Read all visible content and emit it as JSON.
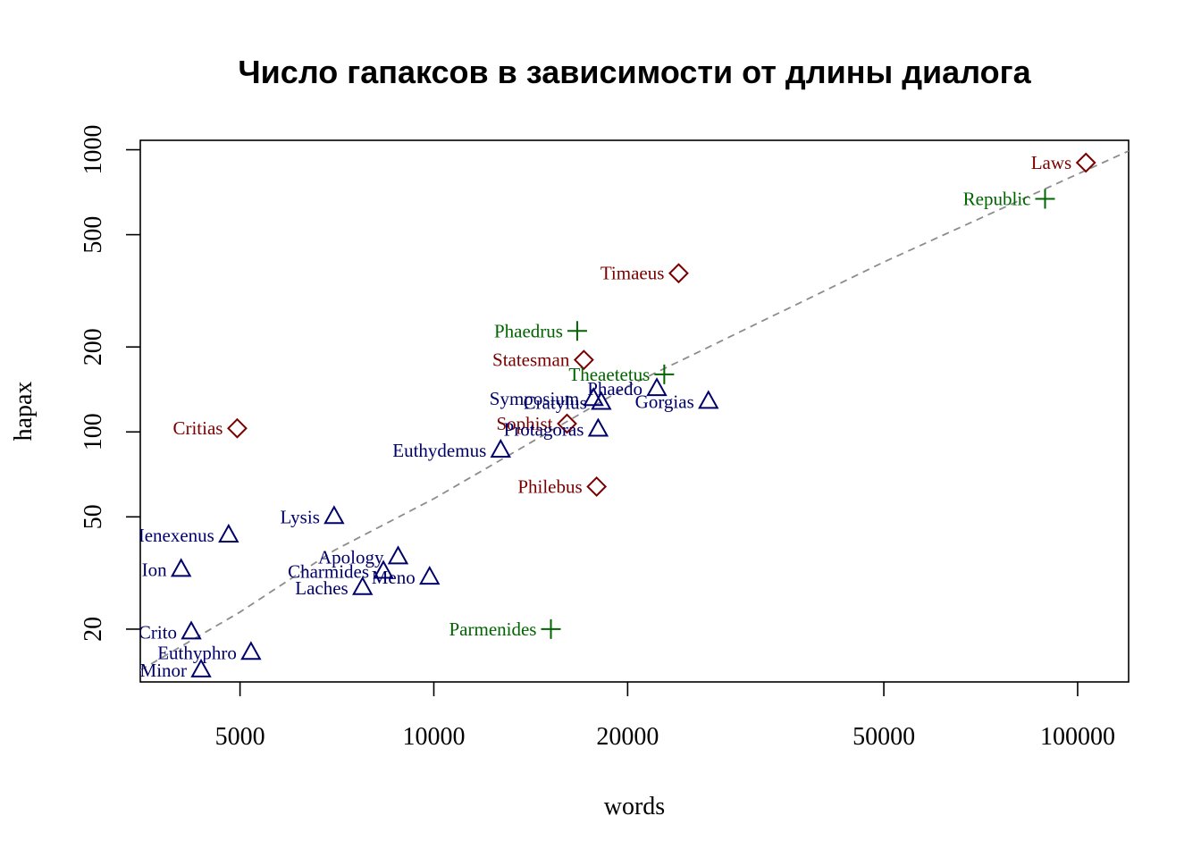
{
  "chart_data": {
    "type": "scatter",
    "title": "Число гапаксов в зависимости от длины диалога",
    "xlabel": "words",
    "ylabel": "hapax",
    "xscale": "log",
    "yscale": "log",
    "xlim": [
      3500,
      120000
    ],
    "ylim": [
      13,
      1080
    ],
    "xticks": [
      {
        "value": 5000,
        "label": "5000"
      },
      {
        "value": 10000,
        "label": "10000"
      },
      {
        "value": 20000,
        "label": "20000"
      },
      {
        "value": 50000,
        "label": "50000"
      },
      {
        "value": 100000,
        "label": "100000"
      }
    ],
    "yticks": [
      {
        "value": 20,
        "label": "20"
      },
      {
        "value": 50,
        "label": "50"
      },
      {
        "value": 100,
        "label": "100"
      },
      {
        "value": 200,
        "label": "200"
      },
      {
        "value": 500,
        "label": "500"
      },
      {
        "value": 1000,
        "label": "1000"
      }
    ],
    "grid": false,
    "legend": "none",
    "groups": {
      "triangle": {
        "marker": "triangle",
        "color": "#00006b"
      },
      "diamond": {
        "marker": "diamond",
        "color": "#7a0000"
      },
      "plus": {
        "marker": "plus",
        "color": "#006400"
      }
    },
    "trendline": {
      "style": "dashed",
      "color": "#8c8c8c",
      "x": [
        3500,
        5000,
        7000,
        10000,
        20000,
        50000,
        120000
      ],
      "y": [
        14.3,
        23,
        38,
        58,
        145,
        400,
        990
      ]
    },
    "points": [
      {
        "label": "Laws",
        "x": 103000,
        "y": 900,
        "group": "diamond"
      },
      {
        "label": "Republic",
        "x": 89000,
        "y": 670,
        "group": "plus"
      },
      {
        "label": "Timaeus",
        "x": 24000,
        "y": 365,
        "group": "diamond"
      },
      {
        "label": "Phaedrus",
        "x": 16700,
        "y": 228,
        "group": "plus"
      },
      {
        "label": "Statesman",
        "x": 17100,
        "y": 180,
        "group": "diamond"
      },
      {
        "label": "Theaetetus",
        "x": 22800,
        "y": 160,
        "group": "plus"
      },
      {
        "label": "Phaedo",
        "x": 22200,
        "y": 142,
        "group": "triangle"
      },
      {
        "label": "Gorgias",
        "x": 26700,
        "y": 128,
        "group": "triangle"
      },
      {
        "label": "Symposium",
        "x": 17700,
        "y": 131,
        "group": "triangle"
      },
      {
        "label": "Cratylus",
        "x": 18200,
        "y": 127,
        "group": "triangle"
      },
      {
        "label": "Sophist",
        "x": 16100,
        "y": 107,
        "group": "diamond"
      },
      {
        "label": "Protagoras",
        "x": 18000,
        "y": 102,
        "group": "triangle"
      },
      {
        "label": "Critias",
        "x": 4950,
        "y": 103,
        "group": "diamond"
      },
      {
        "label": "Euthydemus",
        "x": 12700,
        "y": 86,
        "group": "triangle"
      },
      {
        "label": "Philebus",
        "x": 17900,
        "y": 64,
        "group": "diamond"
      },
      {
        "label": "Lysis",
        "x": 7000,
        "y": 50,
        "group": "triangle"
      },
      {
        "label": "Menexenus",
        "x": 4800,
        "y": 43,
        "group": "triangle"
      },
      {
        "label": "Apology",
        "x": 8800,
        "y": 36,
        "group": "triangle"
      },
      {
        "label": "Ion",
        "x": 4050,
        "y": 32.5,
        "group": "triangle"
      },
      {
        "label": "Charmides",
        "x": 8350,
        "y": 32,
        "group": "triangle"
      },
      {
        "label": "Meno",
        "x": 9850,
        "y": 30.5,
        "group": "triangle"
      },
      {
        "label": "Laches",
        "x": 7750,
        "y": 28,
        "group": "triangle"
      },
      {
        "label": "Parmenides",
        "x": 15200,
        "y": 20,
        "group": "plus"
      },
      {
        "label": "Crito",
        "x": 4200,
        "y": 19.5,
        "group": "triangle"
      },
      {
        "label": "Euthyphro",
        "x": 5200,
        "y": 16.5,
        "group": "triangle"
      },
      {
        "label": "Hippias Minor",
        "x": 4350,
        "y": 14.3,
        "group": "triangle"
      }
    ]
  }
}
